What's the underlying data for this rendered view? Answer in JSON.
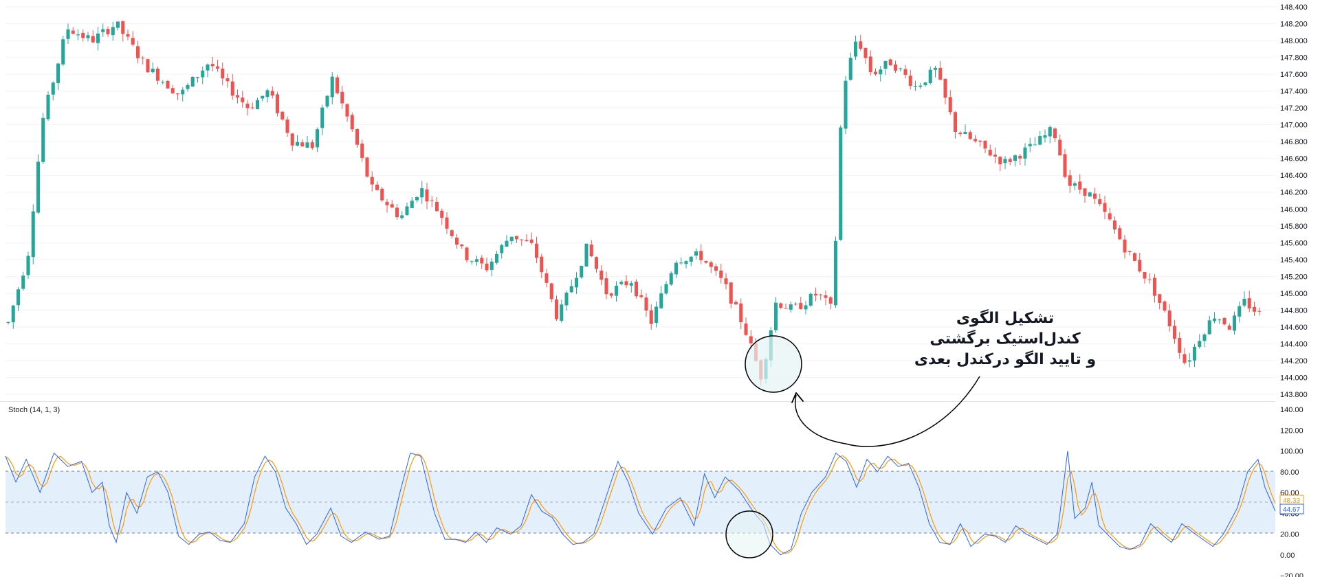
{
  "colors": {
    "up": "#26a69a",
    "down": "#ef5350",
    "k_line": "#2962ff",
    "d_line": "#ff9800",
    "band_fill": "#e3effb",
    "band_line": "#787b86",
    "highlight_fill": "#e6f4f4",
    "grid": "#f0f3fa",
    "text": "#131722"
  },
  "price_axis": {
    "min": 143.8,
    "max": 148.4,
    "ticks": [
      "148.400",
      "148.200",
      "148.000",
      "147.800",
      "147.600",
      "147.400",
      "147.200",
      "147.000",
      "146.800",
      "146.600",
      "146.400",
      "146.200",
      "146.000",
      "145.800",
      "145.600",
      "145.400",
      "145.200",
      "145.000",
      "144.800",
      "144.600",
      "144.400",
      "144.200",
      "144.000",
      "143.800"
    ]
  },
  "stoch_axis": {
    "min": -20,
    "max": 140,
    "ticks": [
      "140.00",
      "120.00",
      "100.00",
      "80.00",
      "60.00",
      "40.00",
      "20.00",
      "0.00",
      "−20.00"
    ]
  },
  "indicator": {
    "label": "Stoch (14, 1, 3)",
    "d_value": "48.33",
    "k_value": "44.67"
  },
  "annotation": {
    "line1": "تشکیل الگوی",
    "line2": "کندل‌استیک برگشتی",
    "line3": "و تایید الگو درکندل بعدی"
  },
  "chart_data": {
    "type": "candlestick",
    "bar_count": 252,
    "price_anchors": [
      [
        0,
        144.65
      ],
      [
        8,
        145.45
      ],
      [
        14,
        147.05
      ],
      [
        24,
        148.15
      ],
      [
        34,
        148.0
      ],
      [
        44,
        148.2
      ],
      [
        56,
        147.7
      ],
      [
        70,
        147.35
      ],
      [
        82,
        147.75
      ],
      [
        88,
        147.5
      ],
      [
        98,
        147.2
      ],
      [
        106,
        147.4
      ],
      [
        116,
        146.8
      ],
      [
        124,
        146.75
      ],
      [
        132,
        147.55
      ],
      [
        140,
        146.95
      ],
      [
        148,
        146.25
      ],
      [
        160,
        145.9
      ],
      [
        168,
        146.25
      ],
      [
        176,
        145.95
      ],
      [
        186,
        145.45
      ],
      [
        195,
        145.3
      ],
      [
        205,
        145.7
      ],
      [
        214,
        145.55
      ],
      [
        224,
        144.7
      ],
      [
        236,
        145.55
      ],
      [
        244,
        145.0
      ],
      [
        254,
        145.15
      ],
      [
        262,
        144.65
      ],
      [
        272,
        145.4
      ],
      [
        282,
        145.45
      ],
      [
        292,
        145.1
      ],
      [
        300,
        144.6
      ],
      [
        307,
        144.0
      ],
      [
        313,
        144.9
      ],
      [
        320,
        144.8
      ],
      [
        330,
        145.0
      ],
      [
        336,
        144.8
      ],
      [
        340,
        147.4
      ],
      [
        346,
        148.05
      ],
      [
        352,
        147.6
      ],
      [
        360,
        147.75
      ],
      [
        370,
        147.45
      ],
      [
        378,
        147.65
      ],
      [
        386,
        146.95
      ],
      [
        396,
        146.75
      ],
      [
        406,
        146.55
      ],
      [
        418,
        146.75
      ],
      [
        426,
        146.95
      ],
      [
        432,
        146.3
      ],
      [
        440,
        146.2
      ],
      [
        448,
        145.9
      ],
      [
        456,
        145.5
      ],
      [
        466,
        145.1
      ],
      [
        474,
        144.6
      ],
      [
        480,
        144.15
      ],
      [
        486,
        144.5
      ],
      [
        492,
        144.75
      ],
      [
        498,
        144.6
      ],
      [
        504,
        144.9
      ],
      [
        510,
        144.75
      ]
    ],
    "stoch_k_anchors": [
      [
        0,
        95
      ],
      [
        3,
        70
      ],
      [
        6,
        92
      ],
      [
        10,
        60
      ],
      [
        14,
        98
      ],
      [
        18,
        85
      ],
      [
        22,
        90
      ],
      [
        25,
        60
      ],
      [
        28,
        70
      ],
      [
        30,
        28
      ],
      [
        32,
        12
      ],
      [
        35,
        60
      ],
      [
        38,
        40
      ],
      [
        41,
        75
      ],
      [
        44,
        80
      ],
      [
        47,
        60
      ],
      [
        50,
        18
      ],
      [
        53,
        10
      ],
      [
        56,
        20
      ],
      [
        59,
        22
      ],
      [
        62,
        14
      ],
      [
        65,
        12
      ],
      [
        69,
        30
      ],
      [
        72,
        75
      ],
      [
        75,
        95
      ],
      [
        78,
        80
      ],
      [
        81,
        45
      ],
      [
        84,
        30
      ],
      [
        87,
        10
      ],
      [
        90,
        20
      ],
      [
        94,
        45
      ],
      [
        97,
        18
      ],
      [
        100,
        12
      ],
      [
        104,
        22
      ],
      [
        108,
        15
      ],
      [
        111,
        18
      ],
      [
        114,
        60
      ],
      [
        117,
        98
      ],
      [
        120,
        95
      ],
      [
        124,
        40
      ],
      [
        127,
        15
      ],
      [
        130,
        15
      ],
      [
        133,
        12
      ],
      [
        136,
        22
      ],
      [
        139,
        12
      ],
      [
        142,
        26
      ],
      [
        146,
        20
      ],
      [
        149,
        28
      ],
      [
        152,
        58
      ],
      [
        155,
        42
      ],
      [
        158,
        36
      ],
      [
        161,
        20
      ],
      [
        164,
        10
      ],
      [
        167,
        12
      ],
      [
        170,
        20
      ],
      [
        174,
        60
      ],
      [
        177,
        90
      ],
      [
        180,
        70
      ],
      [
        183,
        40
      ],
      [
        187,
        20
      ],
      [
        191,
        45
      ],
      [
        195,
        55
      ],
      [
        199,
        28
      ],
      [
        202,
        78
      ],
      [
        205,
        55
      ],
      [
        208,
        75
      ],
      [
        212,
        62
      ],
      [
        216,
        42
      ],
      [
        219,
        30
      ],
      [
        221,
        10
      ],
      [
        224,
        0
      ],
      [
        227,
        5
      ],
      [
        230,
        40
      ],
      [
        233,
        60
      ],
      [
        237,
        75
      ],
      [
        240,
        98
      ],
      [
        243,
        90
      ],
      [
        246,
        65
      ],
      [
        249,
        92
      ],
      [
        252,
        80
      ],
      [
        255,
        95
      ],
      [
        258,
        85
      ],
      [
        261,
        88
      ],
      [
        264,
        65
      ],
      [
        267,
        30
      ],
      [
        270,
        12
      ],
      [
        273,
        10
      ],
      [
        276,
        30
      ],
      [
        279,
        8
      ],
      [
        283,
        20
      ],
      [
        286,
        18
      ],
      [
        289,
        12
      ],
      [
        292,
        28
      ],
      [
        295,
        20
      ],
      [
        298,
        15
      ],
      [
        301,
        10
      ],
      [
        304,
        20
      ],
      [
        307,
        100
      ],
      [
        309,
        35
      ],
      [
        312,
        45
      ],
      [
        314,
        70
      ],
      [
        316,
        28
      ],
      [
        319,
        18
      ],
      [
        322,
        8
      ],
      [
        325,
        5
      ],
      [
        328,
        10
      ],
      [
        331,
        30
      ],
      [
        334,
        20
      ],
      [
        337,
        12
      ],
      [
        340,
        30
      ],
      [
        343,
        22
      ],
      [
        346,
        15
      ],
      [
        349,
        8
      ],
      [
        352,
        20
      ],
      [
        356,
        45
      ],
      [
        359,
        80
      ],
      [
        362,
        92
      ],
      [
        364,
        65
      ],
      [
        367,
        42
      ]
    ],
    "overbought": 80,
    "midline": 50,
    "oversold": 20
  }
}
